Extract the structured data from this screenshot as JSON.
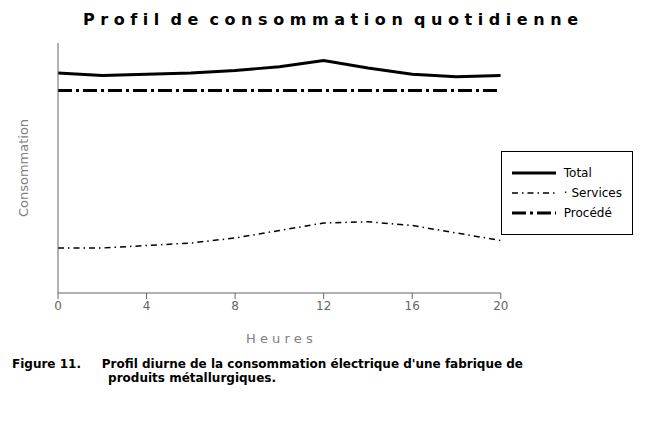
{
  "chart_data": {
    "type": "line",
    "title": "P r o f i l  d e  c o n s o m m a t i o n  q u o t i d i e n n e",
    "xlabel": "H e u r e s",
    "ylabel": "Consommation",
    "x": [
      0,
      2,
      4,
      6,
      8,
      10,
      12,
      14,
      16,
      18,
      20
    ],
    "series": [
      {
        "name": "Total",
        "color": "#000000",
        "line_style": "solid",
        "values": [
          8.8,
          8.7,
          8.75,
          8.8,
          8.9,
          9.05,
          9.3,
          9.0,
          8.75,
          8.65,
          8.7
        ]
      },
      {
        "name": "· Services",
        "color": "#000000",
        "line_style": "dashdot",
        "values": [
          1.8,
          1.8,
          1.9,
          2.0,
          2.2,
          2.5,
          2.8,
          2.85,
          2.7,
          2.4,
          2.1
        ]
      },
      {
        "name": "Procédé",
        "color": "#000000",
        "line_style": "longdashdot",
        "values": [
          8.1,
          8.1,
          8.1,
          8.1,
          8.1,
          8.1,
          8.1,
          8.1,
          8.1,
          8.1,
          8.1
        ]
      }
    ],
    "xlim": [
      0,
      20
    ],
    "xticks": [
      0,
      4,
      8,
      12,
      16,
      20
    ],
    "ylim": [
      0,
      10
    ],
    "tick_labels": "x",
    "grid": false,
    "legend": "right",
    "caption": "Figure 11.     Profil diurne de la consommation électrique d'une fabrique de\n                       produits métallurgiques."
  }
}
